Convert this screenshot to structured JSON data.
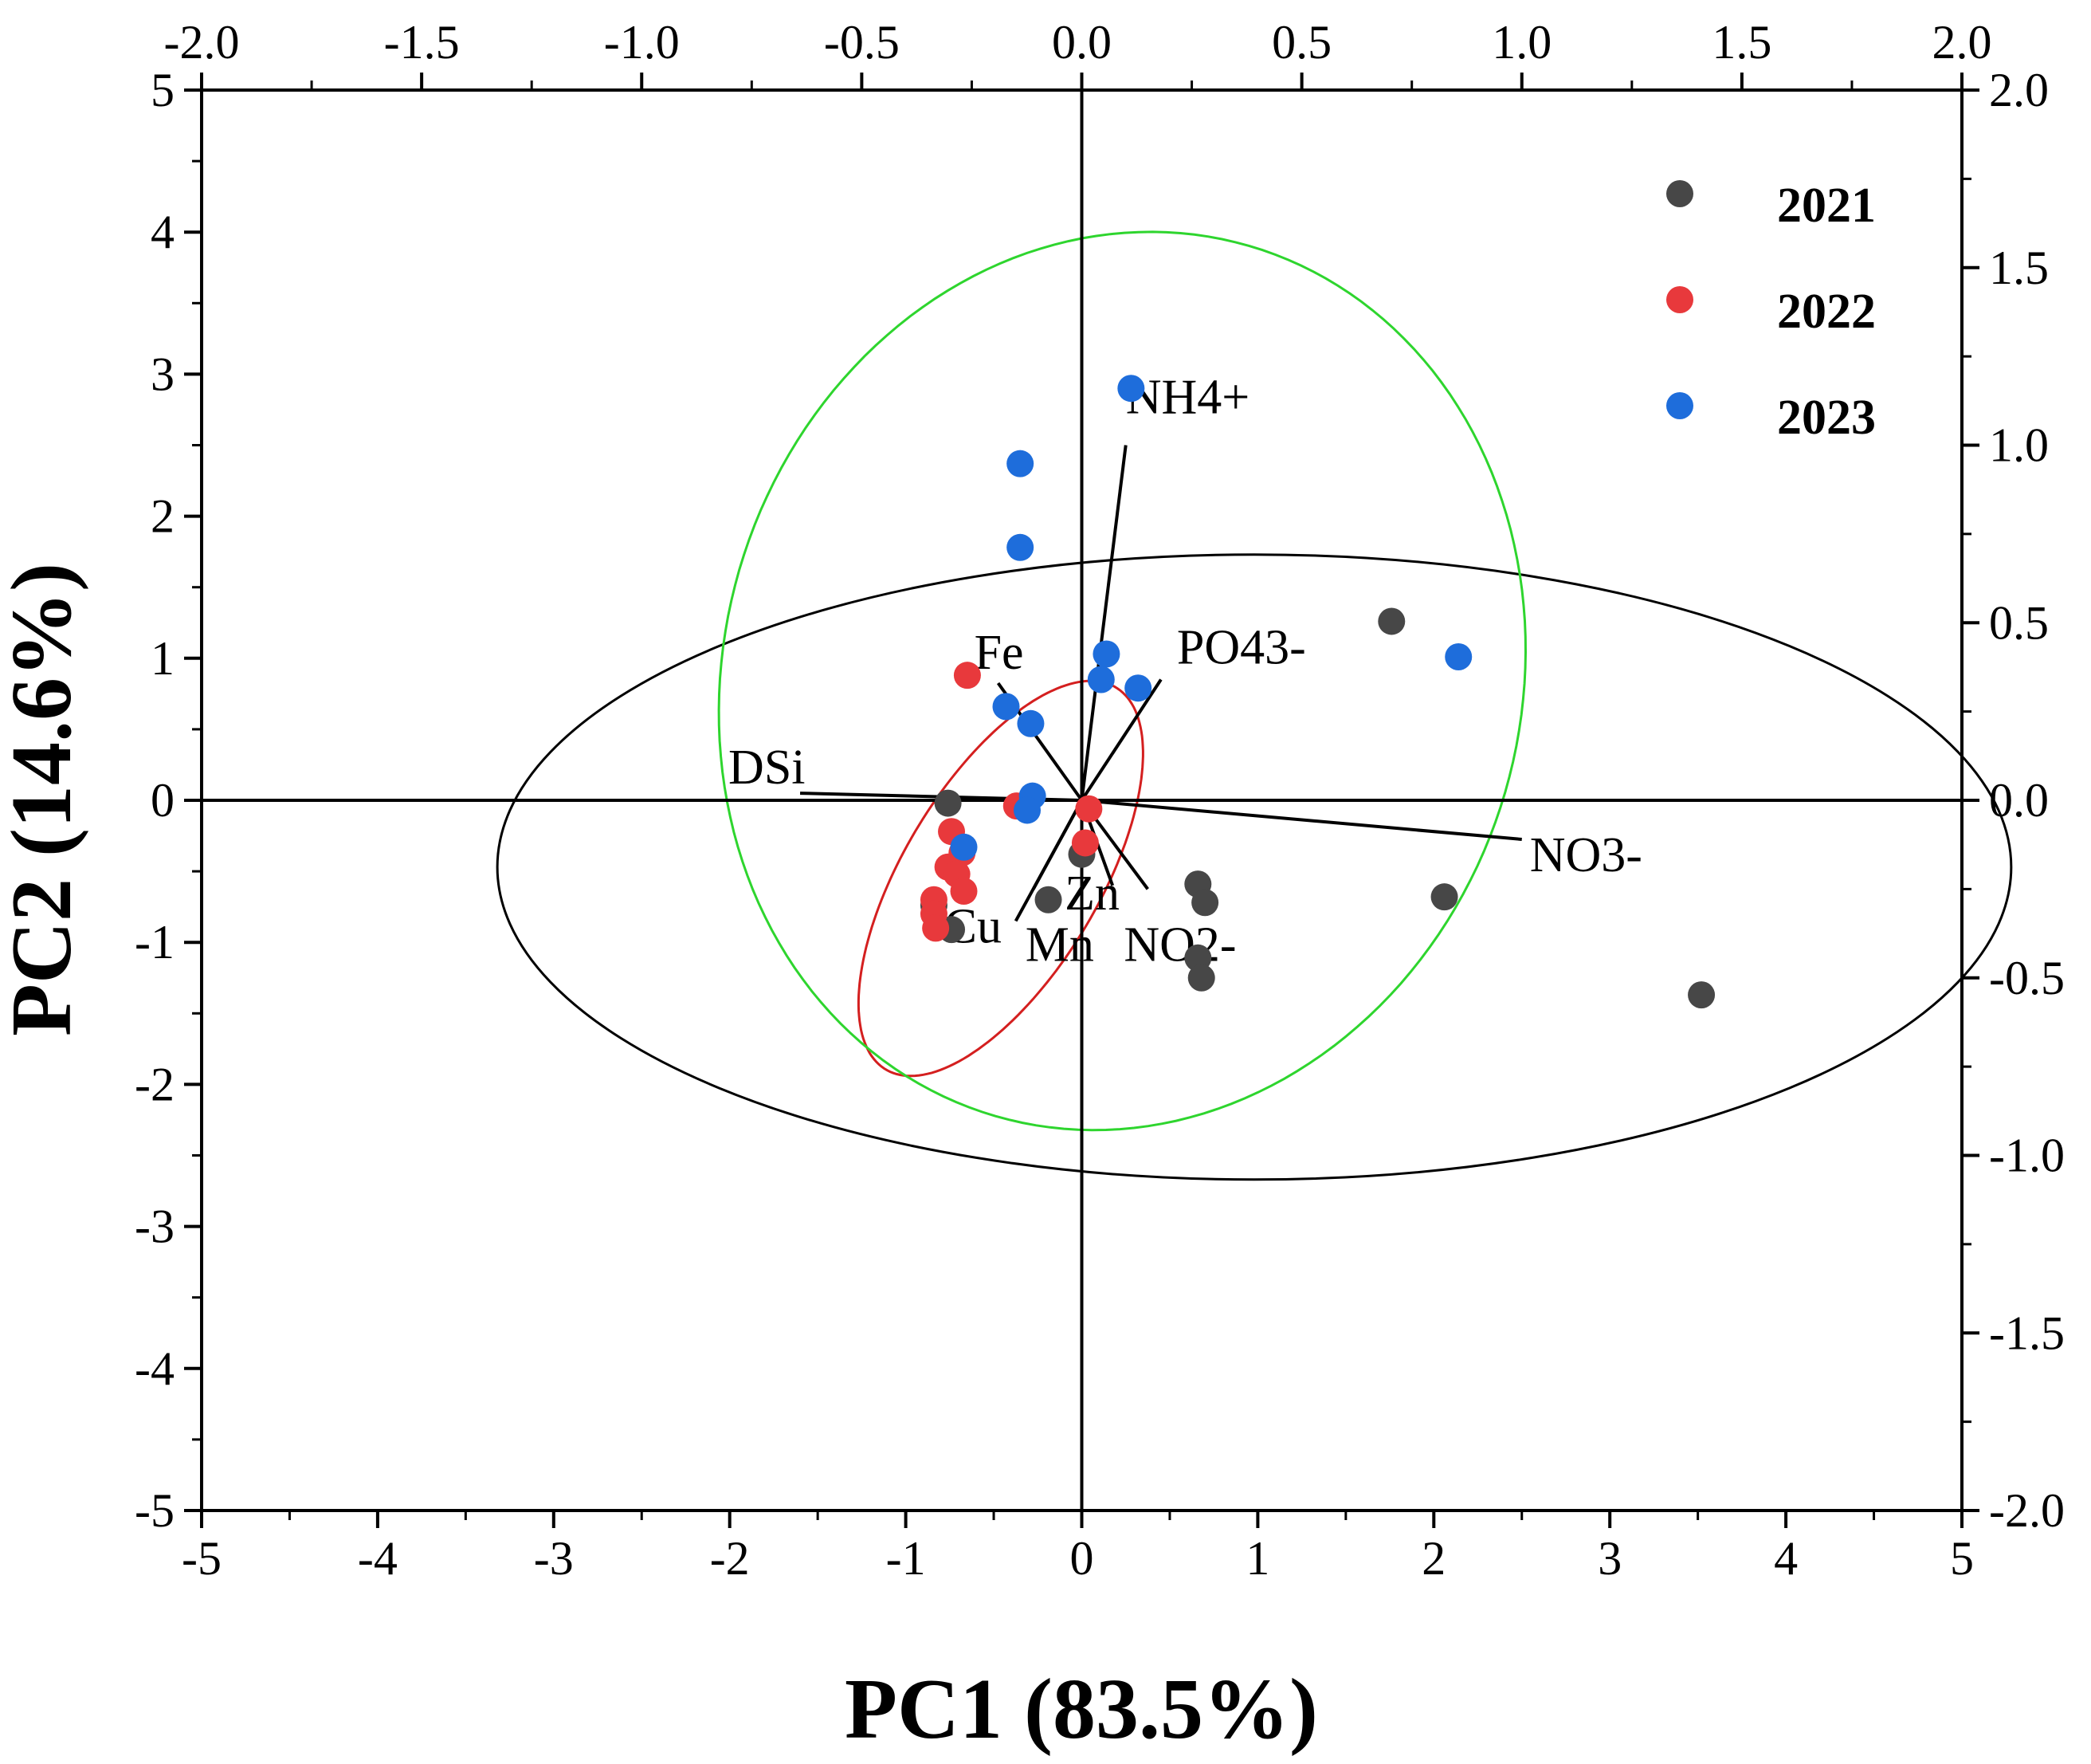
{
  "chart_data": {
    "type": "scatter",
    "title": "",
    "xlabel": "PC1 (83.5%)",
    "ylabel": "PC2 (14.6%)",
    "xlim": [
      -5,
      5
    ],
    "ylim": [
      -5,
      5
    ],
    "x_ticks": [
      -5,
      -4,
      -3,
      -2,
      -1,
      0,
      1,
      2,
      3,
      4,
      5
    ],
    "y_ticks": [
      -5,
      -4,
      -3,
      -2,
      -1,
      0,
      1,
      2,
      3,
      4,
      5
    ],
    "loadings_xlim": [
      -2.0,
      2.0
    ],
    "loadings_ylim": [
      -2.0,
      2.0
    ],
    "top_ticks": [
      "-2.0",
      "-1.5",
      "-1.0",
      "-0.5",
      "0.0",
      "0.5",
      "1.0",
      "1.5",
      "2.0"
    ],
    "right_ticks": [
      "-2.0",
      "-1.5",
      "-1.0",
      "-0.5",
      "0.0",
      "0.5",
      "1.0",
      "1.5",
      "2.0"
    ],
    "legend_position": "top-right",
    "series": [
      {
        "name": "2021",
        "color": "#474747",
        "points": [
          [
            -0.76,
            -0.02
          ],
          [
            1.76,
            1.26
          ],
          [
            3.52,
            -1.37
          ],
          [
            2.06,
            -0.68
          ],
          [
            0.66,
            -0.59
          ],
          [
            0.7,
            -0.72
          ],
          [
            0.66,
            -1.11
          ],
          [
            0.68,
            -1.25
          ],
          [
            0.0,
            -0.38
          ],
          [
            -0.19,
            -0.7
          ],
          [
            -0.74,
            -0.91
          ],
          [
            -0.84,
            -0.74
          ]
        ]
      },
      {
        "name": "2022",
        "color": "#e8393c",
        "points": [
          [
            -0.65,
            0.88
          ],
          [
            -0.37,
            -0.04
          ],
          [
            0.04,
            -0.06
          ],
          [
            0.02,
            -0.3
          ],
          [
            -0.74,
            -0.22
          ],
          [
            -0.68,
            -0.37
          ],
          [
            -0.76,
            -0.47
          ],
          [
            -0.71,
            -0.52
          ],
          [
            -0.67,
            -0.64
          ],
          [
            -0.84,
            -0.7
          ],
          [
            -0.84,
            -0.8
          ],
          [
            -0.83,
            -0.9
          ]
        ]
      },
      {
        "name": "2023",
        "color": "#1e6ddb",
        "points": [
          [
            0.28,
            2.9
          ],
          [
            -0.35,
            2.37
          ],
          [
            -0.35,
            1.78
          ],
          [
            0.14,
            1.03
          ],
          [
            0.11,
            0.85
          ],
          [
            0.32,
            0.79
          ],
          [
            -0.43,
            0.66
          ],
          [
            -0.29,
            0.54
          ],
          [
            -0.28,
            0.03
          ],
          [
            -0.31,
            -0.07
          ],
          [
            -0.67,
            -0.33
          ],
          [
            2.14,
            1.01
          ]
        ]
      }
    ],
    "loadings": [
      {
        "name": "NH4+",
        "x": 0.1,
        "y": 1.0
      },
      {
        "name": "PO43-",
        "x": 0.18,
        "y": 0.34
      },
      {
        "name": "Fe",
        "x": -0.19,
        "y": 0.33
      },
      {
        "name": "DSi",
        "x": -0.64,
        "y": 0.02
      },
      {
        "name": "NO3-",
        "x": 1.0,
        "y": -0.11
      },
      {
        "name": "Cu",
        "x": -0.15,
        "y": -0.34
      },
      {
        "name": "Mn",
        "x": -0.11,
        "y": -0.25
      },
      {
        "name": "Zn",
        "x": 0.07,
        "y": -0.24
      },
      {
        "name": "NO2-",
        "x": 0.15,
        "y": -0.25
      }
    ],
    "ellipses": [
      {
        "series": "2021",
        "color": "#000000",
        "center": [
          0.98,
          -0.47
        ],
        "semi_x": 4.3,
        "semi_y": 2.2
      },
      {
        "series": "2022",
        "color": "#d41f1f",
        "center": [
          -0.46,
          -0.55
        ],
        "semi_axis_1": 1.5,
        "semi_axis_2": 0.58,
        "rotation_deg": 66
      },
      {
        "series": "2023",
        "color": "#2ed52e",
        "center": [
          0.23,
          0.84
        ],
        "semi_axis_1": 3.17,
        "semi_axis_2": 2.28,
        "rotation_deg": 84
      }
    ]
  }
}
